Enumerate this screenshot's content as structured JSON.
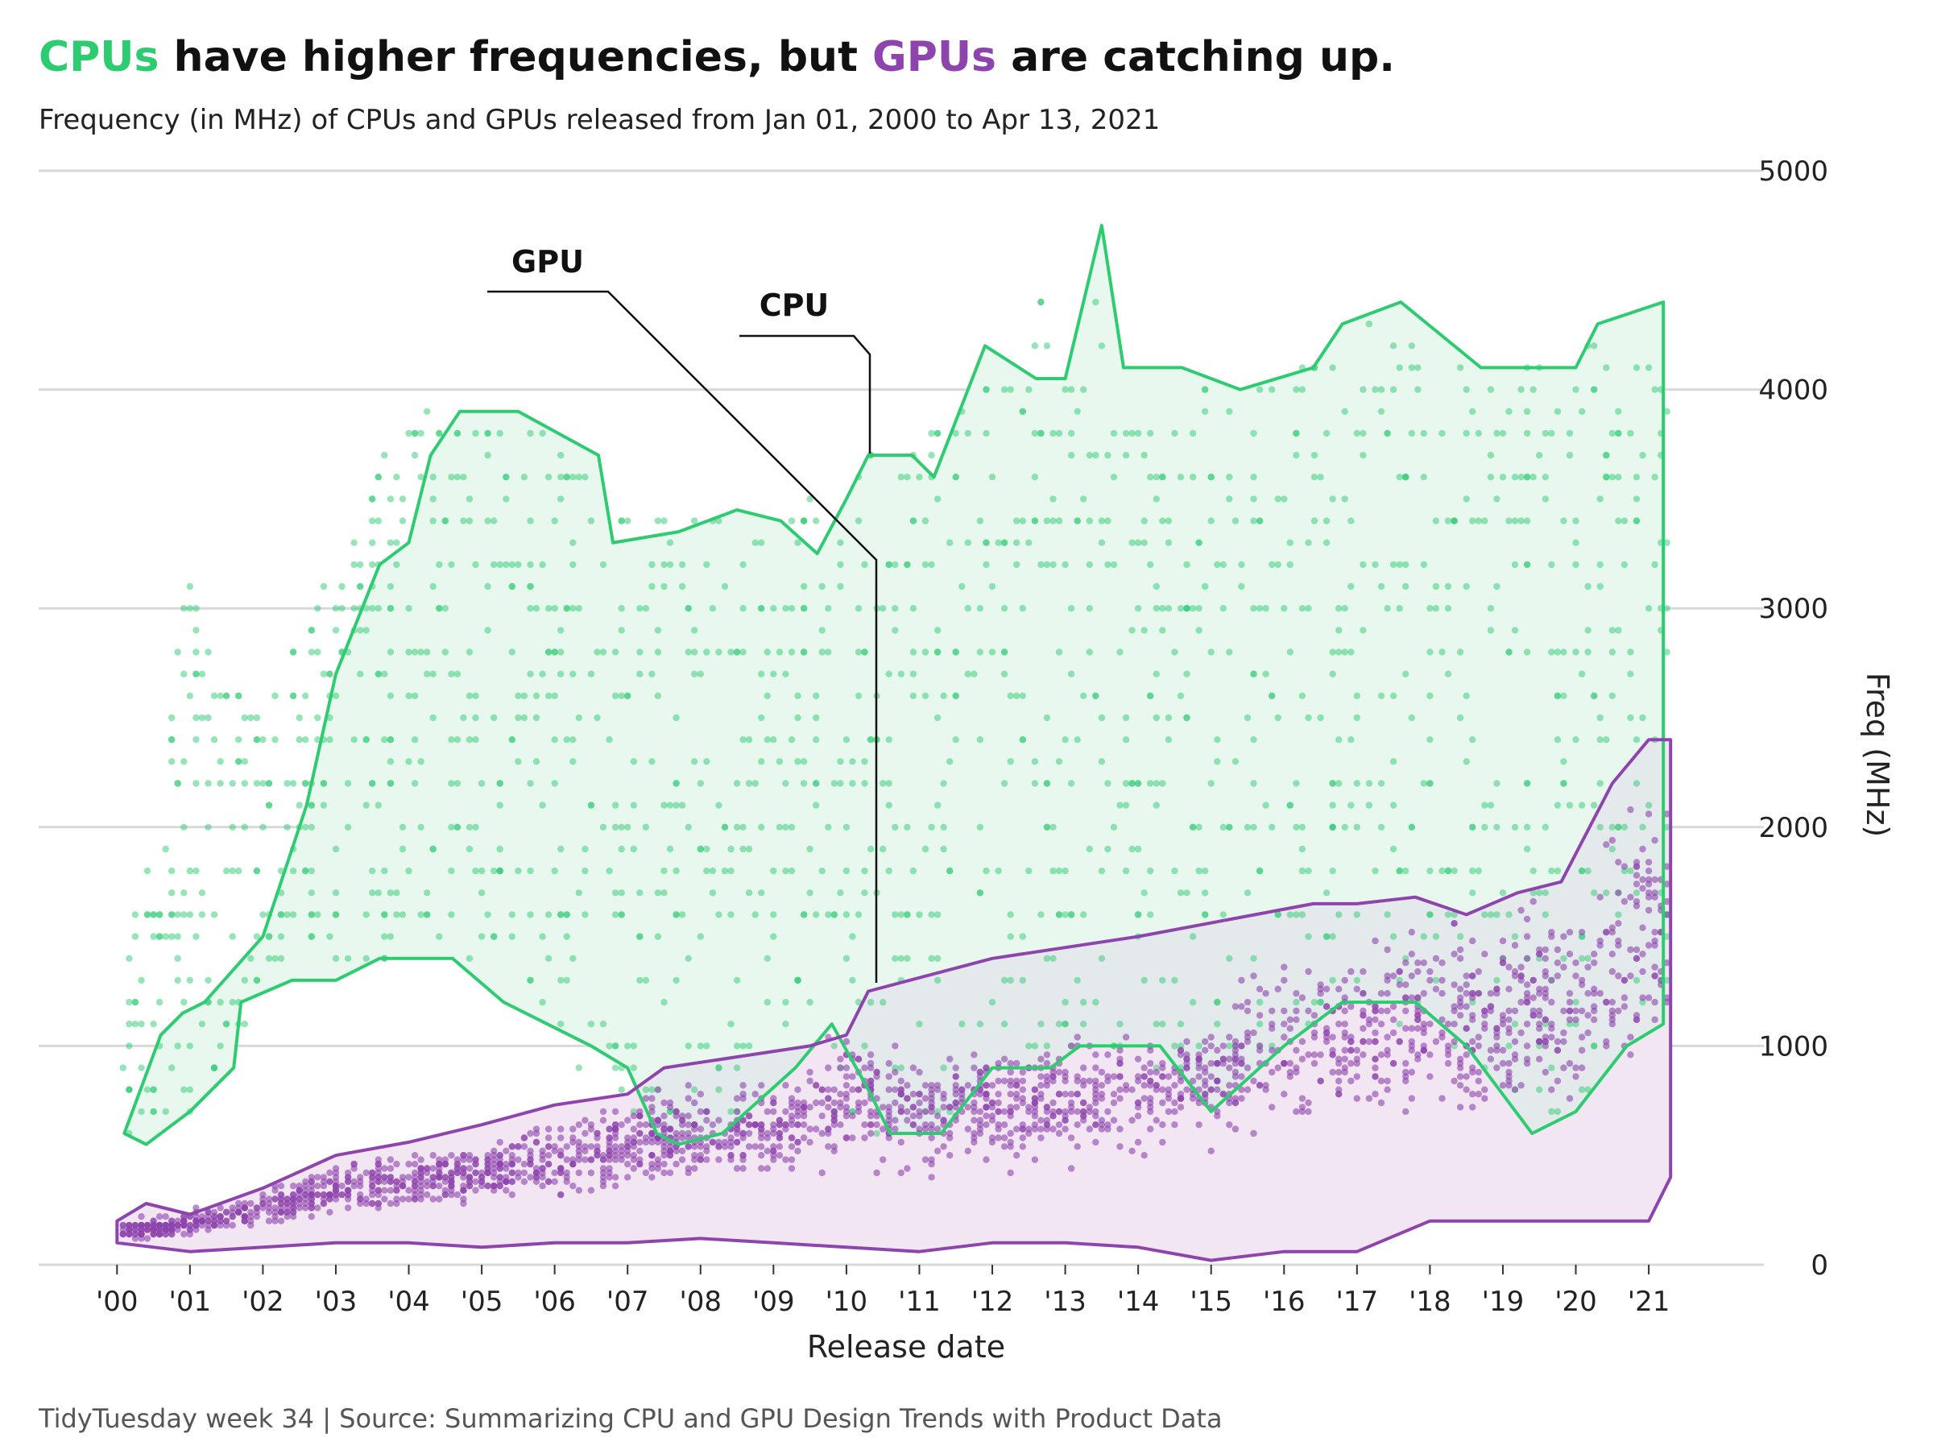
{
  "title": {
    "cpu_word": "CPUs",
    "part1": " have higher frequencies, but ",
    "gpu_word": "GPUs",
    "part2": " are catching up."
  },
  "subtitle": "Frequency (in MHz) of CPUs and GPUs released from Jan 01, 2000 to Apr 13, 2021",
  "caption": "TidyTuesday week 34 | Source: Summarizing CPU and GPU Design Trends with Product Data",
  "colors": {
    "cpu": "#2ecc71",
    "gpu": "#8e44ad",
    "cpu_fill": "#e9f8ef",
    "gpu_fill": "#f3e6f3",
    "overlap_fill": "#e4e9ec",
    "grid": "#d9d9d9"
  },
  "chart_data": {
    "type": "scatter",
    "title": "CPUs have higher frequencies, but GPUs are catching up.",
    "subtitle": "Frequency (in MHz) of CPUs and GPUs released from Jan 01, 2000 to Apr 13, 2021",
    "xlabel": "Release date",
    "ylabel": "Freq (MHz)",
    "y_axis_position": "right",
    "xlim": [
      "1999-07-01",
      "2021-10-01"
    ],
    "ylim": [
      0,
      5000
    ],
    "x_ticks": [
      "'00",
      "'01",
      "'02",
      "'03",
      "'04",
      "'05",
      "'06",
      "'07",
      "'08",
      "'09",
      "'10",
      "'11",
      "'12",
      "'13",
      "'14",
      "'15",
      "'16",
      "'17",
      "'18",
      "'19",
      "'20",
      "'21"
    ],
    "y_ticks": [
      0,
      1000,
      2000,
      3000,
      4000,
      5000
    ],
    "grid": "horizontal",
    "legend": "none (direct labels)",
    "annotations": [
      {
        "text": "GPU",
        "points_to": "GPU hull near 2010"
      },
      {
        "text": "CPU",
        "points_to": "CPU hull near 2010"
      }
    ],
    "series": [
      {
        "name": "CPU",
        "color": "#2ecc71",
        "hull_upper": [
          [
            2000.1,
            600
          ],
          [
            2000.6,
            1050
          ],
          [
            2000.9,
            1150
          ],
          [
            2001.2,
            1200
          ],
          [
            2002.0,
            1500
          ],
          [
            2002.6,
            2100
          ],
          [
            2003.0,
            2700
          ],
          [
            2003.6,
            3200
          ],
          [
            2004.0,
            3300
          ],
          [
            2004.3,
            3700
          ],
          [
            2004.7,
            3900
          ],
          [
            2005.5,
            3900
          ],
          [
            2006.6,
            3700
          ],
          [
            2006.8,
            3300
          ],
          [
            2007.7,
            3350
          ],
          [
            2008.5,
            3450
          ],
          [
            2009.1,
            3400
          ],
          [
            2009.6,
            3250
          ],
          [
            2010.0,
            3500
          ],
          [
            2010.3,
            3700
          ],
          [
            2010.9,
            3700
          ],
          [
            2011.2,
            3600
          ],
          [
            2011.9,
            4200
          ],
          [
            2012.6,
            4050
          ],
          [
            2013.0,
            4050
          ],
          [
            2013.5,
            4750
          ],
          [
            2013.8,
            4100
          ],
          [
            2014.6,
            4100
          ],
          [
            2015.4,
            4000
          ],
          [
            2016.4,
            4100
          ],
          [
            2016.8,
            4300
          ],
          [
            2017.6,
            4400
          ],
          [
            2018.7,
            4100
          ],
          [
            2020.0,
            4100
          ],
          [
            2020.3,
            4300
          ],
          [
            2021.2,
            4400
          ]
        ],
        "hull_lower": [
          [
            2000.1,
            600
          ],
          [
            2000.4,
            550
          ],
          [
            2001.0,
            700
          ],
          [
            2001.6,
            900
          ],
          [
            2001.7,
            1200
          ],
          [
            2002.4,
            1300
          ],
          [
            2003.0,
            1300
          ],
          [
            2003.6,
            1400
          ],
          [
            2004.6,
            1400
          ],
          [
            2005.3,
            1200
          ],
          [
            2006.5,
            1000
          ],
          [
            2007.0,
            900
          ],
          [
            2007.4,
            600
          ],
          [
            2007.7,
            550
          ],
          [
            2008.3,
            600
          ],
          [
            2009.3,
            900
          ],
          [
            2009.8,
            1100
          ],
          [
            2010.3,
            800
          ],
          [
            2010.6,
            600
          ],
          [
            2011.3,
            600
          ],
          [
            2012.0,
            900
          ],
          [
            2012.8,
            900
          ],
          [
            2013.2,
            1000
          ],
          [
            2014.3,
            1000
          ],
          [
            2015.0,
            700
          ],
          [
            2016.0,
            1000
          ],
          [
            2016.8,
            1200
          ],
          [
            2017.8,
            1200
          ],
          [
            2018.5,
            1000
          ],
          [
            2019.4,
            600
          ],
          [
            2020.0,
            700
          ],
          [
            2020.7,
            1000
          ],
          [
            2021.2,
            1100
          ]
        ],
        "y_range_by_year": [
          [
            2000,
            600,
            1050
          ],
          [
            2001,
            700,
            3100
          ],
          [
            2002,
            1200,
            2500
          ],
          [
            2003,
            1300,
            3300
          ],
          [
            2004,
            1400,
            3900
          ],
          [
            2005,
            1200,
            3900
          ],
          [
            2006,
            1000,
            3800
          ],
          [
            2007,
            600,
            3400
          ],
          [
            2008,
            550,
            3400
          ],
          [
            2009,
            900,
            3400
          ],
          [
            2010,
            600,
            3700
          ],
          [
            2011,
            600,
            3700
          ],
          [
            2012,
            900,
            4200
          ],
          [
            2013,
            1000,
            4700
          ],
          [
            2014,
            900,
            4100
          ],
          [
            2015,
            700,
            4000
          ],
          [
            2016,
            1000,
            4100
          ],
          [
            2017,
            1200,
            4300
          ],
          [
            2018,
            1000,
            4200
          ],
          [
            2019,
            600,
            4100
          ],
          [
            2020,
            700,
            4300
          ],
          [
            2021,
            1100,
            4300
          ]
        ],
        "common_values": [
          1600,
          1800,
          2000,
          2200,
          2400,
          2600,
          2800,
          3000,
          3200,
          3400,
          3600,
          3800,
          4000
        ]
      },
      {
        "name": "GPU",
        "color": "#8e44ad",
        "hull_upper": [
          [
            2000.0,
            200
          ],
          [
            2000.4,
            280
          ],
          [
            2001.0,
            230
          ],
          [
            2002.0,
            350
          ],
          [
            2003.0,
            500
          ],
          [
            2004.0,
            560
          ],
          [
            2005.0,
            640
          ],
          [
            2006.0,
            730
          ],
          [
            2007.0,
            780
          ],
          [
            2007.5,
            900
          ],
          [
            2008.5,
            950
          ],
          [
            2009.5,
            1000
          ],
          [
            2010.0,
            1050
          ],
          [
            2010.3,
            1250
          ],
          [
            2012.0,
            1400
          ],
          [
            2014.0,
            1500
          ],
          [
            2016.4,
            1650
          ],
          [
            2017.0,
            1650
          ],
          [
            2017.8,
            1680
          ],
          [
            2018.5,
            1600
          ],
          [
            2019.2,
            1700
          ],
          [
            2019.8,
            1750
          ],
          [
            2020.5,
            2200
          ],
          [
            2021.0,
            2400
          ],
          [
            2021.3,
            2400
          ]
        ],
        "hull_lower": [
          [
            2000.0,
            100
          ],
          [
            2001.0,
            60
          ],
          [
            2002.0,
            80
          ],
          [
            2003.0,
            100
          ],
          [
            2004.0,
            100
          ],
          [
            2005.0,
            80
          ],
          [
            2006.0,
            100
          ],
          [
            2007.0,
            100
          ],
          [
            2008.0,
            120
          ],
          [
            2009.0,
            100
          ],
          [
            2010.0,
            80
          ],
          [
            2011.0,
            60
          ],
          [
            2012.0,
            100
          ],
          [
            2013.0,
            100
          ],
          [
            2014.0,
            80
          ],
          [
            2015.0,
            20
          ],
          [
            2016.0,
            60
          ],
          [
            2017.0,
            60
          ],
          [
            2018.0,
            200
          ],
          [
            2019.0,
            200
          ],
          [
            2020.0,
            200
          ],
          [
            2021.0,
            200
          ],
          [
            2021.3,
            400
          ]
        ],
        "y_range_by_year": [
          [
            2000,
            100,
            200
          ],
          [
            2001,
            120,
            250
          ],
          [
            2002,
            150,
            350
          ],
          [
            2003,
            200,
            500
          ],
          [
            2004,
            200,
            550
          ],
          [
            2005,
            250,
            600
          ],
          [
            2006,
            250,
            700
          ],
          [
            2007,
            300,
            800
          ],
          [
            2008,
            300,
            900
          ],
          [
            2009,
            350,
            900
          ],
          [
            2010,
            350,
            1200
          ],
          [
            2011,
            350,
            1000
          ],
          [
            2012,
            400,
            1050
          ],
          [
            2013,
            400,
            1100
          ],
          [
            2014,
            450,
            1150
          ],
          [
            2015,
            500,
            1200
          ],
          [
            2016,
            500,
            1600
          ],
          [
            2017,
            550,
            1600
          ],
          [
            2018,
            550,
            1650
          ],
          [
            2019,
            550,
            1700
          ],
          [
            2020,
            600,
            1800
          ],
          [
            2021,
            800,
            2350
          ]
        ],
        "common_values": [
          300,
          500,
          600,
          800,
          1000
        ]
      }
    ]
  }
}
